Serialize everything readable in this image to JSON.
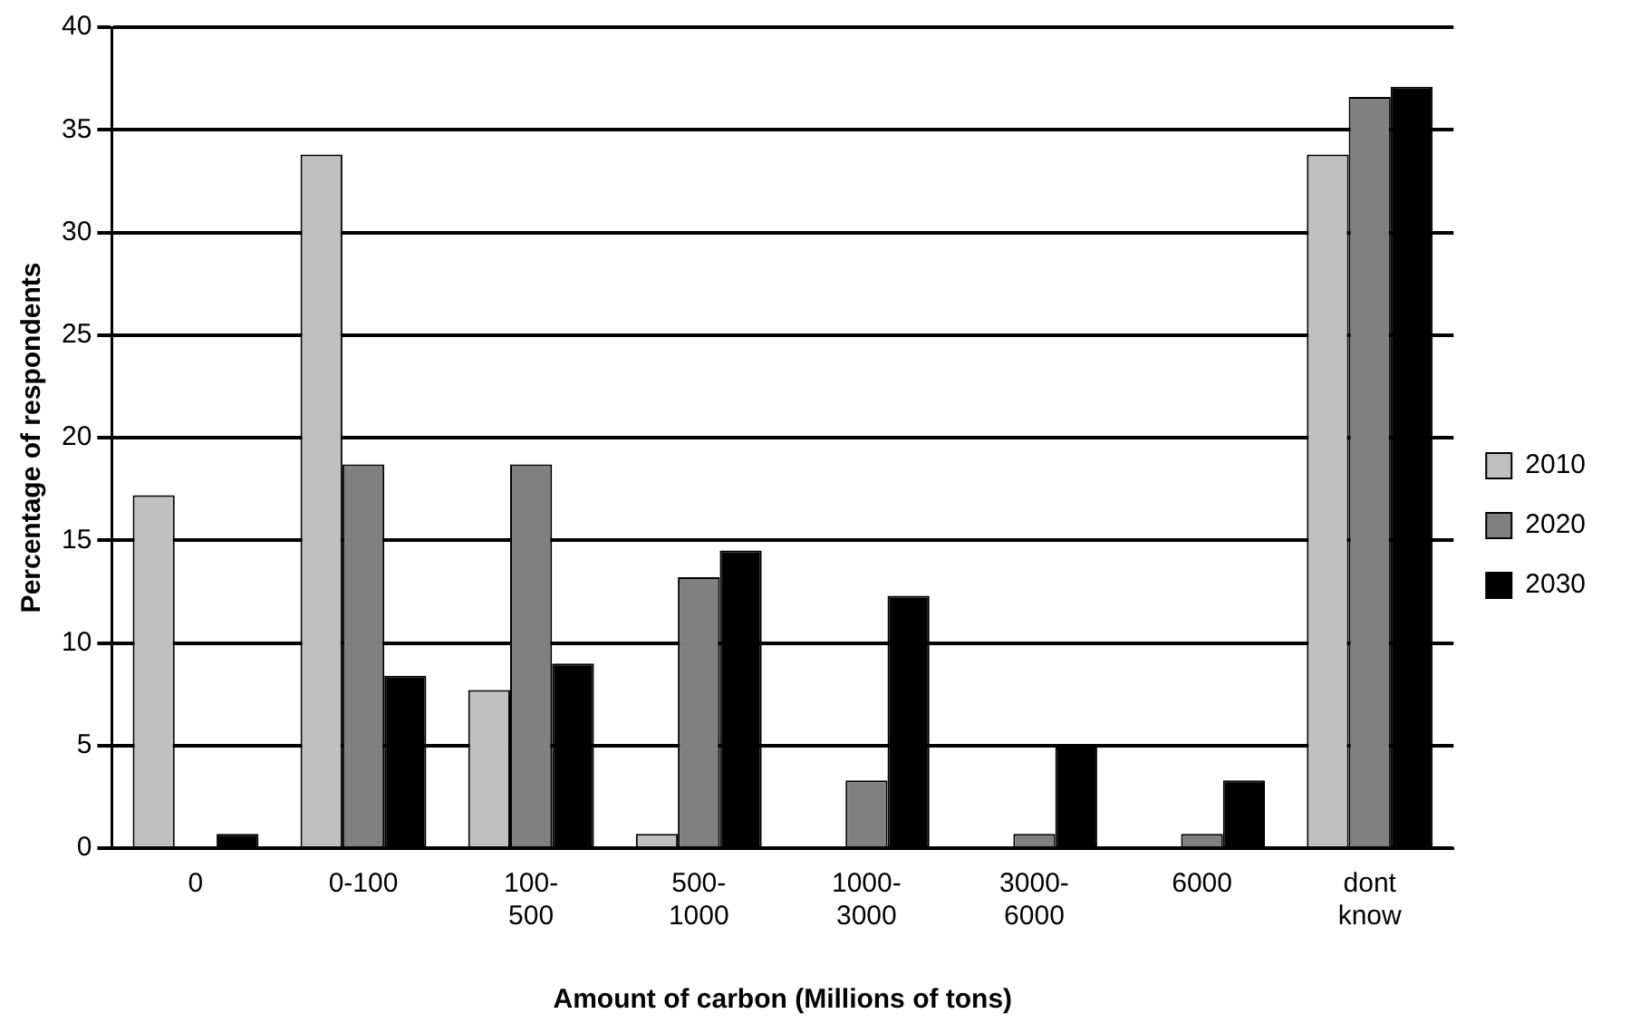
{
  "chart_data": {
    "type": "bar",
    "xlabel": "Amount of carbon (Millions of tons)",
    "ylabel": "Percentage of respondents",
    "categories": [
      "0",
      "0-100",
      "100-500",
      "500-1000",
      "1000-3000",
      "3000-6000",
      "6000",
      "dont know"
    ],
    "series": [
      {
        "name": "2010",
        "color": "#c0c0c0",
        "values": [
          17.2,
          33.8,
          7.7,
          0.7,
          0,
          0,
          0,
          33.8
        ]
      },
      {
        "name": "2020",
        "color": "#808080",
        "values": [
          0,
          18.7,
          18.7,
          13.2,
          3.3,
          0.7,
          0.7,
          36.6
        ]
      },
      {
        "name": "2030",
        "color": "#000000",
        "values": [
          0.7,
          8.4,
          9.0,
          14.5,
          12.3,
          4.9,
          3.3,
          37.1
        ]
      }
    ],
    "ylim": [
      0,
      40
    ],
    "yticks": [
      0,
      5,
      10,
      15,
      20,
      25,
      30,
      35,
      40
    ],
    "grid": "y",
    "legend": "right"
  }
}
